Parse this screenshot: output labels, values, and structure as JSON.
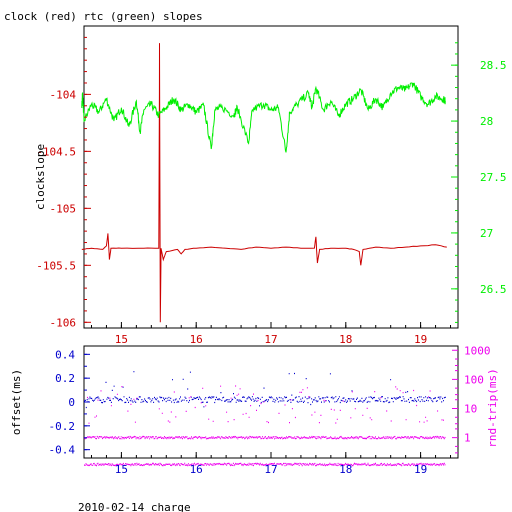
{
  "page_title": "clock (red) rtc (green) slopes",
  "footer": "2010-02-14 charge",
  "colors": {
    "clock": "#cc0000",
    "rtc": "#00ee00",
    "offset": "#0000cc",
    "rtt": "#ee00ee",
    "axis": "#000000"
  },
  "chart_data": [
    {
      "type": "line",
      "title": "clock (red) rtc (green) slopes",
      "xlabel": "",
      "x_ticks": [
        "15",
        "16",
        "17",
        "18",
        "19"
      ],
      "xlim": [
        14.5,
        19.5
      ],
      "ylabel_left": "clockslope",
      "ylim_left": [
        -106.05,
        -103.4
      ],
      "y_ticks_left": [
        "-104",
        "-104.5",
        "-105",
        "-105.5",
        "-106"
      ],
      "ylim_right": [
        26.15,
        28.85
      ],
      "y_ticks_right": [
        "28.5",
        "28",
        "27.5",
        "27",
        "26.5"
      ],
      "grid": false,
      "series": [
        {
          "name": "clock",
          "axis": "left",
          "baseline": -105.35,
          "points": [
            [
              14.47,
              -105.36
            ],
            [
              14.6,
              -105.35
            ],
            [
              14.75,
              -105.36
            ],
            [
              14.8,
              -105.33
            ],
            [
              14.82,
              -105.22
            ],
            [
              14.84,
              -105.45
            ],
            [
              14.86,
              -105.35
            ],
            [
              15.0,
              -105.35
            ],
            [
              15.3,
              -105.35
            ],
            [
              15.5,
              -105.35
            ],
            [
              15.51,
              -103.55
            ],
            [
              15.52,
              -106.0
            ],
            [
              15.53,
              -105.35
            ],
            [
              15.56,
              -105.45
            ],
            [
              15.6,
              -105.38
            ],
            [
              15.75,
              -105.36
            ],
            [
              15.8,
              -105.4
            ],
            [
              15.85,
              -105.36
            ],
            [
              16.0,
              -105.35
            ],
            [
              16.2,
              -105.34
            ],
            [
              16.4,
              -105.35
            ],
            [
              16.6,
              -105.36
            ],
            [
              16.8,
              -105.34
            ],
            [
              17.0,
              -105.35
            ],
            [
              17.2,
              -105.34
            ],
            [
              17.4,
              -105.35
            ],
            [
              17.58,
              -105.35
            ],
            [
              17.6,
              -105.25
            ],
            [
              17.62,
              -105.48
            ],
            [
              17.65,
              -105.36
            ],
            [
              17.8,
              -105.35
            ],
            [
              18.0,
              -105.35
            ],
            [
              18.1,
              -105.36
            ],
            [
              18.18,
              -105.38
            ],
            [
              18.2,
              -105.5
            ],
            [
              18.23,
              -105.36
            ],
            [
              18.4,
              -105.34
            ],
            [
              18.6,
              -105.35
            ],
            [
              18.8,
              -105.34
            ],
            [
              19.0,
              -105.33
            ],
            [
              19.2,
              -105.32
            ],
            [
              19.35,
              -105.34
            ]
          ]
        },
        {
          "name": "rtc",
          "axis": "right",
          "baseline": 28.12,
          "points": [
            [
              14.47,
              28.12
            ],
            [
              14.48,
              28.25
            ],
            [
              14.5,
              28.0
            ],
            [
              14.6,
              28.15
            ],
            [
              14.7,
              28.08
            ],
            [
              14.8,
              28.2
            ],
            [
              14.9,
              28.0
            ],
            [
              15.0,
              28.12
            ],
            [
              15.1,
              27.95
            ],
            [
              15.2,
              28.18
            ],
            [
              15.25,
              27.9
            ],
            [
              15.3,
              28.1
            ],
            [
              15.4,
              28.15
            ],
            [
              15.5,
              28.05
            ],
            [
              15.6,
              28.12
            ],
            [
              15.7,
              28.2
            ],
            [
              15.8,
              28.1
            ],
            [
              15.9,
              28.15
            ],
            [
              16.0,
              28.08
            ],
            [
              16.1,
              28.14
            ],
            [
              16.2,
              27.75
            ],
            [
              16.25,
              28.1
            ],
            [
              16.35,
              28.12
            ],
            [
              16.5,
              28.05
            ],
            [
              16.55,
              28.12
            ],
            [
              16.7,
              27.8
            ],
            [
              16.75,
              28.1
            ],
            [
              16.9,
              28.15
            ],
            [
              17.0,
              28.1
            ],
            [
              17.1,
              28.12
            ],
            [
              17.2,
              27.72
            ],
            [
              17.25,
              28.08
            ],
            [
              17.35,
              28.15
            ],
            [
              17.5,
              28.25
            ],
            [
              17.55,
              28.12
            ],
            [
              17.6,
              28.3
            ],
            [
              17.7,
              28.1
            ],
            [
              17.8,
              28.18
            ],
            [
              17.9,
              28.05
            ],
            [
              18.0,
              28.15
            ],
            [
              18.1,
              28.2
            ],
            [
              18.2,
              28.28
            ],
            [
              18.3,
              28.1
            ],
            [
              18.4,
              28.2
            ],
            [
              18.5,
              28.12
            ],
            [
              18.6,
              28.25
            ],
            [
              18.7,
              28.3
            ],
            [
              18.8,
              28.28
            ],
            [
              18.9,
              28.34
            ],
            [
              19.0,
              28.22
            ],
            [
              19.1,
              28.15
            ],
            [
              19.2,
              28.22
            ],
            [
              19.3,
              28.2
            ],
            [
              19.33,
              28.18
            ]
          ]
        }
      ]
    },
    {
      "type": "scatter",
      "xlim": [
        14.5,
        19.5
      ],
      "x_ticks": [
        "15",
        "16",
        "17",
        "18",
        "19"
      ],
      "ylabel_left": "offset(ms)",
      "ylim_left": [
        -0.47,
        0.47
      ],
      "y_ticks_left": [
        "0.4",
        "0.2",
        "0",
        "-0.2",
        "-0.4"
      ],
      "ylabel_right": "rnd-trip(ms)",
      "y_scale_right": "log",
      "ylim_right": [
        0.2,
        1400
      ],
      "y_ticks_right": [
        "1000",
        "100",
        "10",
        "1"
      ],
      "grid": false,
      "series": [
        {
          "name": "offset",
          "axis": "left",
          "baseline": 0.02,
          "range": [
            14.5,
            19.33
          ]
        },
        {
          "name": "rnd-trip",
          "axis": "right",
          "bands": [
            1.0,
            0.12
          ],
          "range": [
            14.5,
            19.33
          ]
        }
      ]
    }
  ]
}
